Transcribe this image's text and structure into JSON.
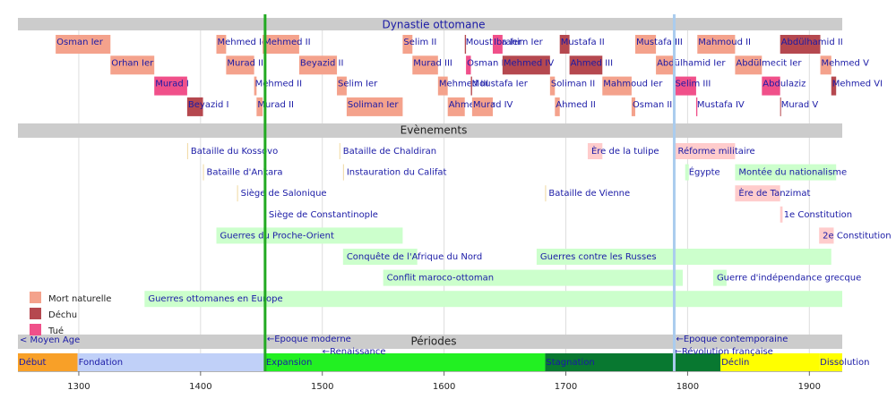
{
  "chart_data": {
    "type": "timeline",
    "sections": [
      "Dynastie ottomane",
      "Evènements",
      "Périodes"
    ],
    "xlim": [
      1250,
      1927
    ],
    "xticks": [
      1300,
      1400,
      1500,
      1600,
      1700,
      1800,
      1900
    ],
    "grid": true,
    "legend": [
      {
        "name": "Mort naturelle",
        "color": "#f4a28c"
      },
      {
        "name": "Déchu",
        "color": "#b5484f"
      },
      {
        "name": "Tué",
        "color": "#f0508a"
      }
    ],
    "reigns": [
      {
        "name": "Osman Ier",
        "start": 1281,
        "end": 1326,
        "color": "#f4a28c"
      },
      {
        "name": "Orhan Ier",
        "start": 1326,
        "end": 1362,
        "color": "#f4a28c"
      },
      {
        "name": "Murad I",
        "start": 1362,
        "end": 1389,
        "color": "#f0508a"
      },
      {
        "name": "Beyazid I",
        "start": 1389,
        "end": 1402,
        "color": "#b5484f"
      },
      {
        "name": "Mehmed Ier",
        "start": 1413,
        "end": 1421,
        "color": "#f4a28c"
      },
      {
        "name": "Murad II",
        "start": 1421,
        "end": 1444,
        "color": "#f4a28c"
      },
      {
        "name": "Mehmed II",
        "start": 1444,
        "end": 1446,
        "color": "#f4a28c"
      },
      {
        "name": "Murad II",
        "start": 1446,
        "end": 1451,
        "color": "#f4a28c"
      },
      {
        "name": "Mehmed II",
        "start": 1451,
        "end": 1481,
        "color": "#f4a28c"
      },
      {
        "name": "Beyazid II",
        "start": 1481,
        "end": 1512,
        "color": "#f4a28c"
      },
      {
        "name": "Selim Ier",
        "start": 1512,
        "end": 1520,
        "color": "#f4a28c"
      },
      {
        "name": "Soliman Ier",
        "start": 1520,
        "end": 1566,
        "color": "#f4a28c"
      },
      {
        "name": "Selim II",
        "start": 1566,
        "end": 1574,
        "color": "#f4a28c"
      },
      {
        "name": "Murad III",
        "start": 1574,
        "end": 1595,
        "color": "#f4a28c"
      },
      {
        "name": "Mehmed III",
        "start": 1595,
        "end": 1603,
        "color": "#f4a28c"
      },
      {
        "name": "Ahmed Ier",
        "start": 1603,
        "end": 1617,
        "color": "#f4a28c"
      },
      {
        "name": "Moustafa Ier",
        "start": 1617,
        "end": 1618,
        "color": "#b5484f"
      },
      {
        "name": "Osman II",
        "start": 1618,
        "end": 1622,
        "color": "#f0508a"
      },
      {
        "name": "Moustafa Ier",
        "start": 1622,
        "end": 1623,
        "color": "#b5484f"
      },
      {
        "name": "Murad IV",
        "start": 1623,
        "end": 1640,
        "color": "#f4a28c"
      },
      {
        "name": "Ibrahim Ier",
        "start": 1640,
        "end": 1648,
        "color": "#f0508a"
      },
      {
        "name": "Mehmed IV",
        "start": 1648,
        "end": 1687,
        "color": "#b5484f"
      },
      {
        "name": "Soliman II",
        "start": 1687,
        "end": 1691,
        "color": "#f4a28c"
      },
      {
        "name": "Ahmed II",
        "start": 1691,
        "end": 1695,
        "color": "#f4a28c"
      },
      {
        "name": "Mustafa II",
        "start": 1695,
        "end": 1703,
        "color": "#b5484f"
      },
      {
        "name": "Ahmed III",
        "start": 1703,
        "end": 1730,
        "color": "#b5484f"
      },
      {
        "name": "Mahmoud Ier",
        "start": 1730,
        "end": 1754,
        "color": "#f4a28c"
      },
      {
        "name": "Osman III",
        "start": 1754,
        "end": 1757,
        "color": "#f4a28c"
      },
      {
        "name": "Mustafa III",
        "start": 1757,
        "end": 1774,
        "color": "#f4a28c"
      },
      {
        "name": "Abdülhamid Ier",
        "start": 1774,
        "end": 1789,
        "color": "#f4a28c"
      },
      {
        "name": "Selim III",
        "start": 1789,
        "end": 1807,
        "color": "#f0508a"
      },
      {
        "name": "Mustafa IV",
        "start": 1807,
        "end": 1808,
        "color": "#f0508a"
      },
      {
        "name": "Mahmoud II",
        "start": 1808,
        "end": 1839,
        "color": "#f4a28c"
      },
      {
        "name": "Abdülmecit Ier",
        "start": 1839,
        "end": 1861,
        "color": "#f4a28c"
      },
      {
        "name": "Abdulaziz",
        "start": 1861,
        "end": 1876,
        "color": "#f0508a"
      },
      {
        "name": "Murad V",
        "start": 1876,
        "end": 1876,
        "color": "#b5484f"
      },
      {
        "name": "Abdülhamid II",
        "start": 1876,
        "end": 1909,
        "color": "#b5484f"
      },
      {
        "name": "Mehmed V",
        "start": 1909,
        "end": 1918,
        "color": "#f4a28c"
      },
      {
        "name": "Mehmed VI",
        "start": 1918,
        "end": 1922,
        "color": "#b5484f"
      }
    ],
    "event_lanes": [
      [
        {
          "name": "Bataille du Kossovo",
          "start": 1389,
          "end": 1389,
          "color": "#f0d8a0"
        },
        {
          "name": "Bataille de Chaldiran",
          "start": 1514,
          "end": 1514,
          "color": "#f0d8a0"
        },
        {
          "name": "Ère de la tulipe",
          "start": 1718,
          "end": 1730,
          "color": "#ffcccc"
        },
        {
          "name": "Réforme militaire",
          "start": 1789,
          "end": 1839,
          "color": "#ffcccc"
        }
      ],
      [
        {
          "name": "Bataille d'Ankara",
          "start": 1402,
          "end": 1402,
          "color": "#f0d8a0"
        },
        {
          "name": "Instauration du Califat",
          "start": 1517,
          "end": 1517,
          "color": "#f0d8a0"
        },
        {
          "name": "Égypte",
          "start": 1798,
          "end": 1801,
          "color": "#ccffcc"
        },
        {
          "name": "Montée du nationalisme",
          "start": 1839,
          "end": 1922,
          "color": "#ccffcc"
        }
      ],
      [
        {
          "name": "Siège de Salonique",
          "start": 1430,
          "end": 1430,
          "color": "#f0d8a0"
        },
        {
          "name": "Bataille de Vienne",
          "start": 1683,
          "end": 1683,
          "color": "#f0d8a0"
        },
        {
          "name": "Ère de Tanzimat",
          "start": 1839,
          "end": 1876,
          "color": "#ffcccc"
        }
      ],
      [
        {
          "name": "Siège de Constantinople",
          "start": 1453,
          "end": 1453,
          "color": "#f0d8a0"
        },
        {
          "name": "1e Constitution",
          "start": 1876,
          "end": 1878,
          "color": "#ffcccc"
        }
      ],
      [
        {
          "name": "Guerres du Proche-Orient",
          "start": 1413,
          "end": 1566,
          "color": "#ccffcc"
        },
        {
          "name": "2e Constitution",
          "start": 1908,
          "end": 1920,
          "color": "#ffcccc"
        }
      ],
      [
        {
          "name": "Conquête de l'Afrique du Nord",
          "start": 1517,
          "end": 1578,
          "color": "#ccffcc"
        },
        {
          "name": "Guerres contre les Russes",
          "start": 1676,
          "end": 1918,
          "color": "#ccffcc"
        }
      ],
      [
        {
          "name": "Conflit maroco-ottoman",
          "start": 1550,
          "end": 1796,
          "color": "#ccffcc"
        },
        {
          "name": "Guerre d'indépendance grecque",
          "start": 1821,
          "end": 1832,
          "color": "#ccffcc"
        }
      ],
      [
        {
          "name": "Guerres ottomanes en Europe",
          "start": 1354,
          "end": 1927,
          "color": "#ccffcc"
        }
      ]
    ],
    "periods": [
      {
        "name": "Début",
        "start": 1250,
        "end": 1299,
        "color": "#f8a028"
      },
      {
        "name": "Fondation",
        "start": 1299,
        "end": 1453,
        "color": "#c0d0f8"
      },
      {
        "name": "Expansion",
        "start": 1453,
        "end": 1683,
        "color": "#22f022"
      },
      {
        "name": "Stagnation",
        "start": 1683,
        "end": 1827,
        "color": "#087830"
      },
      {
        "name": "Déclin",
        "start": 1827,
        "end": 1908,
        "color": "#ffff00"
      },
      {
        "name": "Dissolution",
        "start": 1908,
        "end": 1927,
        "color": "#ffff00"
      }
    ],
    "start_label": "< Moyen Age",
    "markers": [
      {
        "label": "←Epoque moderne",
        "year": 1453,
        "color": "#22aa22"
      },
      {
        "label": "←Epoque contemporaine",
        "year": 1789,
        "color": "#aaccee"
      }
    ],
    "notes": [
      {
        "label": "←Renaissance",
        "year": 1500
      },
      {
        "label": "←Révolution française",
        "year": 1789
      }
    ]
  }
}
